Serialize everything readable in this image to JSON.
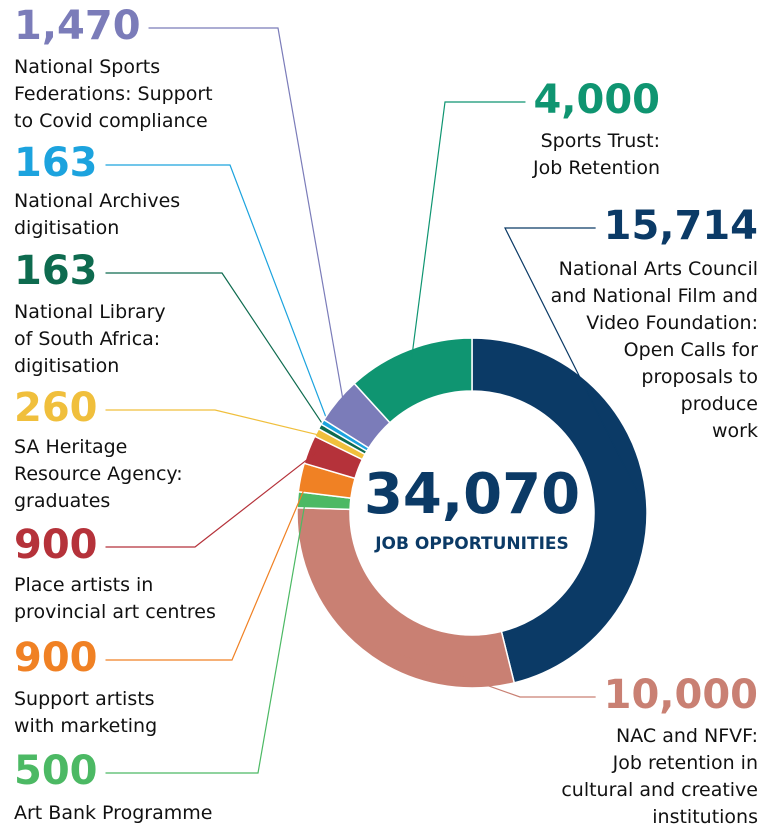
{
  "chart_data": {
    "type": "donut",
    "categories": [
      "National Arts Council\nand National Film and\nVideo Foundation:\nOpen Calls for\nproposals to\nproduce\nwork",
      "NAC and NFVF:\nJob retention in\ncultural and creative\ninstitutions",
      "Art Bank Programme",
      "Support artists\nwith marketing",
      "Place artists in\nprovincial art centres",
      "SA Heritage\nResource Agency:\ngraduates",
      "National Library\nof South Africa:\ndigitisation",
      "National Archives\ndigitisation",
      "National Sports\nFederations: Support\nto Covid compliance",
      "Sports Trust:\nJob Retention"
    ],
    "values": [
      15714,
      10000,
      500,
      900,
      900,
      260,
      163,
      163,
      1470,
      4000
    ],
    "value_labels": [
      "15,714",
      "10,000",
      "500",
      "900",
      "900",
      "260",
      "163",
      "163",
      "1,470",
      "4,000"
    ],
    "colors": [
      "#0b3a66",
      "#c98073",
      "#4cb964",
      "#f08124",
      "#b5323a",
      "#f0bf3c",
      "#0e6b4f",
      "#1ca3de",
      "#7b7cb9",
      "#0f9571"
    ],
    "total": {
      "value": 34070,
      "label": "34,070"
    },
    "total_caption": "JOB OPPORTUNITIES"
  }
}
